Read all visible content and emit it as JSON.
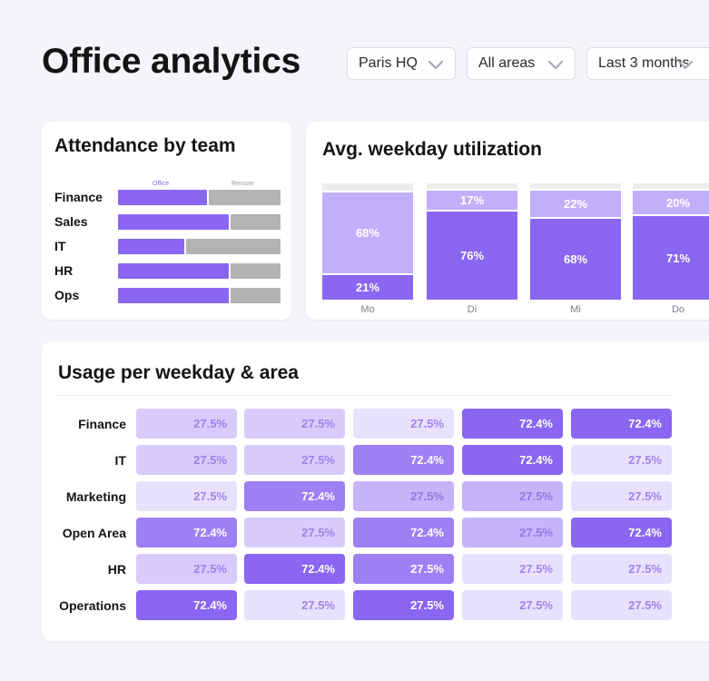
{
  "header": {
    "title": "Office analytics"
  },
  "filters": [
    {
      "value": "Paris HQ"
    },
    {
      "value": "All areas"
    },
    {
      "value": "Last 3 months"
    }
  ],
  "attendance": {
    "title": "Attendance by team",
    "legend": {
      "office": "Office",
      "remote": "Remote"
    },
    "teams": [
      {
        "label": "Finance",
        "office_fraction": 0.55
      },
      {
        "label": "Sales",
        "office_fraction": 0.68
      },
      {
        "label": "IT",
        "office_fraction": 0.41
      },
      {
        "label": "HR",
        "office_fraction": 0.68
      },
      {
        "label": "Ops",
        "office_fraction": 0.68
      }
    ]
  },
  "utilization": {
    "title": "Avg. weekday utilization",
    "days": [
      {
        "label": "Mo",
        "top": "68%",
        "bottom": "21%",
        "top_value": 68,
        "bottom_value": 21
      },
      {
        "label": "Di",
        "top": "17%",
        "bottom": "76%",
        "top_value": 17,
        "bottom_value": 76
      },
      {
        "label": "Mi",
        "top": "22%",
        "bottom": "68%",
        "top_value": 22,
        "bottom_value": 68
      },
      {
        "label": "Do",
        "top": "20%",
        "bottom": "71%",
        "top_value": 20,
        "bottom_value": 71
      }
    ]
  },
  "heatmap": {
    "title": "Usage per weekday & area",
    "rows": [
      {
        "label": "Finance",
        "cells": [
          {
            "v": "27.5%",
            "lv": 2
          },
          {
            "v": "27.5%",
            "lv": 2
          },
          {
            "v": "27.5%",
            "lv": 1
          },
          {
            "v": "72.4%",
            "lv": 5
          },
          {
            "v": "72.4%",
            "lv": 5
          }
        ]
      },
      {
        "label": "IT",
        "cells": [
          {
            "v": "27.5%",
            "lv": 2
          },
          {
            "v": "27.5%",
            "lv": 2
          },
          {
            "v": "72.4%",
            "lv": 4
          },
          {
            "v": "72.4%",
            "lv": 5
          },
          {
            "v": "27.5%",
            "lv": 1
          }
        ]
      },
      {
        "label": "Marketing",
        "cells": [
          {
            "v": "27.5%",
            "lv": 1
          },
          {
            "v": "72.4%",
            "lv": 4
          },
          {
            "v": "27.5%",
            "lv": 3
          },
          {
            "v": "27.5%",
            "lv": 3
          },
          {
            "v": "27.5%",
            "lv": 1
          }
        ]
      },
      {
        "label": "Open Area",
        "cells": [
          {
            "v": "72.4%",
            "lv": 4
          },
          {
            "v": "27.5%",
            "lv": 2
          },
          {
            "v": "72.4%",
            "lv": 4
          },
          {
            "v": "27.5%",
            "lv": 3
          },
          {
            "v": "72.4%",
            "lv": 5
          }
        ]
      },
      {
        "label": "HR",
        "cells": [
          {
            "v": "27.5%",
            "lv": 2
          },
          {
            "v": "72.4%",
            "lv": 5
          },
          {
            "v": "27.5%",
            "lv": 4
          },
          {
            "v": "27.5%",
            "lv": 1
          },
          {
            "v": "27.5%",
            "lv": 1
          }
        ]
      },
      {
        "label": "Operations",
        "cells": [
          {
            "v": "72.4%",
            "lv": 5
          },
          {
            "v": "27.5%",
            "lv": 1
          },
          {
            "v": "27.5%",
            "lv": 5
          },
          {
            "v": "27.5%",
            "lv": 1
          },
          {
            "v": "27.5%",
            "lv": 1
          }
        ]
      }
    ]
  },
  "colors": {
    "office": "#8a66f2",
    "remote": "#b3b3b3",
    "utilization_top": "#c1b0f9",
    "utilization_bottom": "#8a66f2",
    "utilization_unused": "#ededed"
  },
  "icons": {
    "dropdown": "chevron-down-icon"
  }
}
